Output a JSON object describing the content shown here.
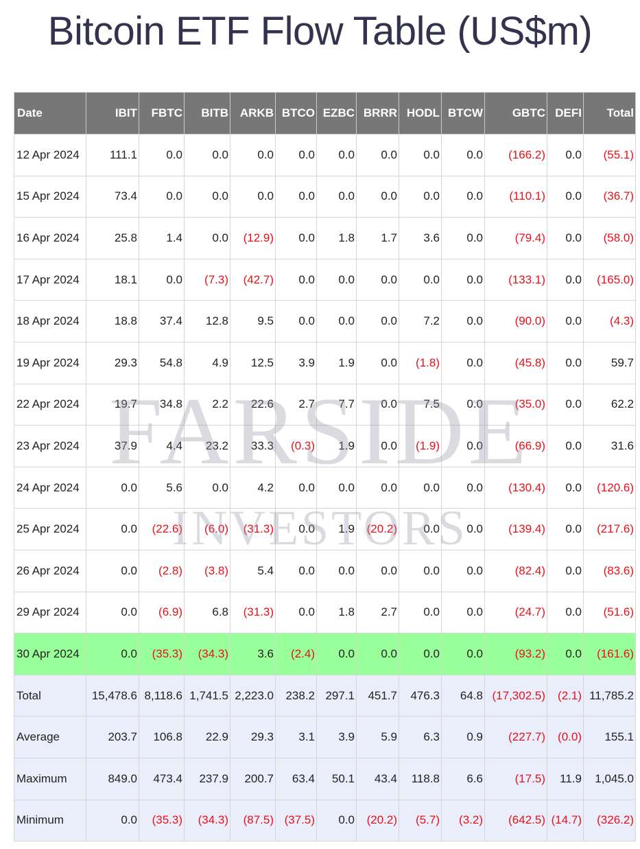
{
  "title": "Bitcoin ETF Flow Table (US$m)",
  "watermark": {
    "line1": "FARSIDE",
    "line2": "INVESTORS"
  },
  "colors": {
    "header_bg": "#777777",
    "highlight_row": "#99ff99",
    "summary_bg": "#eaeefa",
    "negative": "#e8101a"
  },
  "columns": [
    "Date",
    "IBIT",
    "FBTC",
    "BITB",
    "ARKB",
    "BTCO",
    "EZBC",
    "BRRR",
    "HODL",
    "BTCW",
    "GBTC",
    "DEFI",
    "Total"
  ],
  "rows": [
    {
      "date": "12 Apr 2024",
      "values": [
        "111.1",
        "0.0",
        "0.0",
        "0.0",
        "0.0",
        "0.0",
        "0.0",
        "0.0",
        "0.0",
        "(166.2)",
        "0.0",
        "(55.1)"
      ]
    },
    {
      "date": "15 Apr 2024",
      "values": [
        "73.4",
        "0.0",
        "0.0",
        "0.0",
        "0.0",
        "0.0",
        "0.0",
        "0.0",
        "0.0",
        "(110.1)",
        "0.0",
        "(36.7)"
      ]
    },
    {
      "date": "16 Apr 2024",
      "values": [
        "25.8",
        "1.4",
        "0.0",
        "(12.9)",
        "0.0",
        "1.8",
        "1.7",
        "3.6",
        "0.0",
        "(79.4)",
        "0.0",
        "(58.0)"
      ]
    },
    {
      "date": "17 Apr 2024",
      "values": [
        "18.1",
        "0.0",
        "(7.3)",
        "(42.7)",
        "0.0",
        "0.0",
        "0.0",
        "0.0",
        "0.0",
        "(133.1)",
        "0.0",
        "(165.0)"
      ]
    },
    {
      "date": "18 Apr 2024",
      "values": [
        "18.8",
        "37.4",
        "12.8",
        "9.5",
        "0.0",
        "0.0",
        "0.0",
        "7.2",
        "0.0",
        "(90.0)",
        "0.0",
        "(4.3)"
      ]
    },
    {
      "date": "19 Apr 2024",
      "values": [
        "29.3",
        "54.8",
        "4.9",
        "12.5",
        "3.9",
        "1.9",
        "0.0",
        "(1.8)",
        "0.0",
        "(45.8)",
        "0.0",
        "59.7"
      ]
    },
    {
      "date": "22 Apr 2024",
      "values": [
        "19.7",
        "34.8",
        "2.2",
        "22.6",
        "2.7",
        "7.7",
        "0.0",
        "7.5",
        "0.0",
        "(35.0)",
        "0.0",
        "62.2"
      ]
    },
    {
      "date": "23 Apr 2024",
      "values": [
        "37.9",
        "4.4",
        "23.2",
        "33.3",
        "(0.3)",
        "1.9",
        "0.0",
        "(1.9)",
        "0.0",
        "(66.9)",
        "0.0",
        "31.6"
      ]
    },
    {
      "date": "24 Apr 2024",
      "values": [
        "0.0",
        "5.6",
        "0.0",
        "4.2",
        "0.0",
        "0.0",
        "0.0",
        "0.0",
        "0.0",
        "(130.4)",
        "0.0",
        "(120.6)"
      ]
    },
    {
      "date": "25 Apr 2024",
      "values": [
        "0.0",
        "(22.6)",
        "(6.0)",
        "(31.3)",
        "0.0",
        "1.9",
        "(20.2)",
        "0.0",
        "0.0",
        "(139.4)",
        "0.0",
        "(217.6)"
      ]
    },
    {
      "date": "26 Apr 2024",
      "values": [
        "0.0",
        "(2.8)",
        "(3.8)",
        "5.4",
        "0.0",
        "0.0",
        "0.0",
        "0.0",
        "0.0",
        "(82.4)",
        "0.0",
        "(83.6)"
      ]
    },
    {
      "date": "29 Apr 2024",
      "values": [
        "0.0",
        "(6.9)",
        "6.8",
        "(31.3)",
        "0.0",
        "1.8",
        "2.7",
        "0.0",
        "0.0",
        "(24.7)",
        "0.0",
        "(51.6)"
      ]
    },
    {
      "date": "30 Apr 2024",
      "values": [
        "0.0",
        "(35.3)",
        "(34.3)",
        "3.6",
        "(2.4)",
        "0.0",
        "0.0",
        "0.0",
        "0.0",
        "(93.2)",
        "0.0",
        "(161.6)"
      ],
      "highlight": true
    }
  ],
  "summary": [
    {
      "label": "Total",
      "values": [
        "15,478.6",
        "8,118.6",
        "1,741.5",
        "2,223.0",
        "238.2",
        "297.1",
        "451.7",
        "476.3",
        "64.8",
        "(17,302.5)",
        "(2.1)",
        "11,785.2"
      ]
    },
    {
      "label": "Average",
      "values": [
        "203.7",
        "106.8",
        "22.9",
        "29.3",
        "3.1",
        "3.9",
        "5.9",
        "6.3",
        "0.9",
        "(227.7)",
        "(0.0)",
        "155.1"
      ]
    },
    {
      "label": "Maximum",
      "values": [
        "849.0",
        "473.4",
        "237.9",
        "200.7",
        "63.4",
        "50.1",
        "43.4",
        "118.8",
        "6.6",
        "(17.5)",
        "11.9",
        "1,045.0"
      ]
    },
    {
      "label": "Minimum",
      "values": [
        "0.0",
        "(35.3)",
        "(34.3)",
        "(87.5)",
        "(37.5)",
        "0.0",
        "(20.2)",
        "(5.7)",
        "(3.2)",
        "(642.5)",
        "(14.7)",
        "(326.2)"
      ]
    }
  ]
}
